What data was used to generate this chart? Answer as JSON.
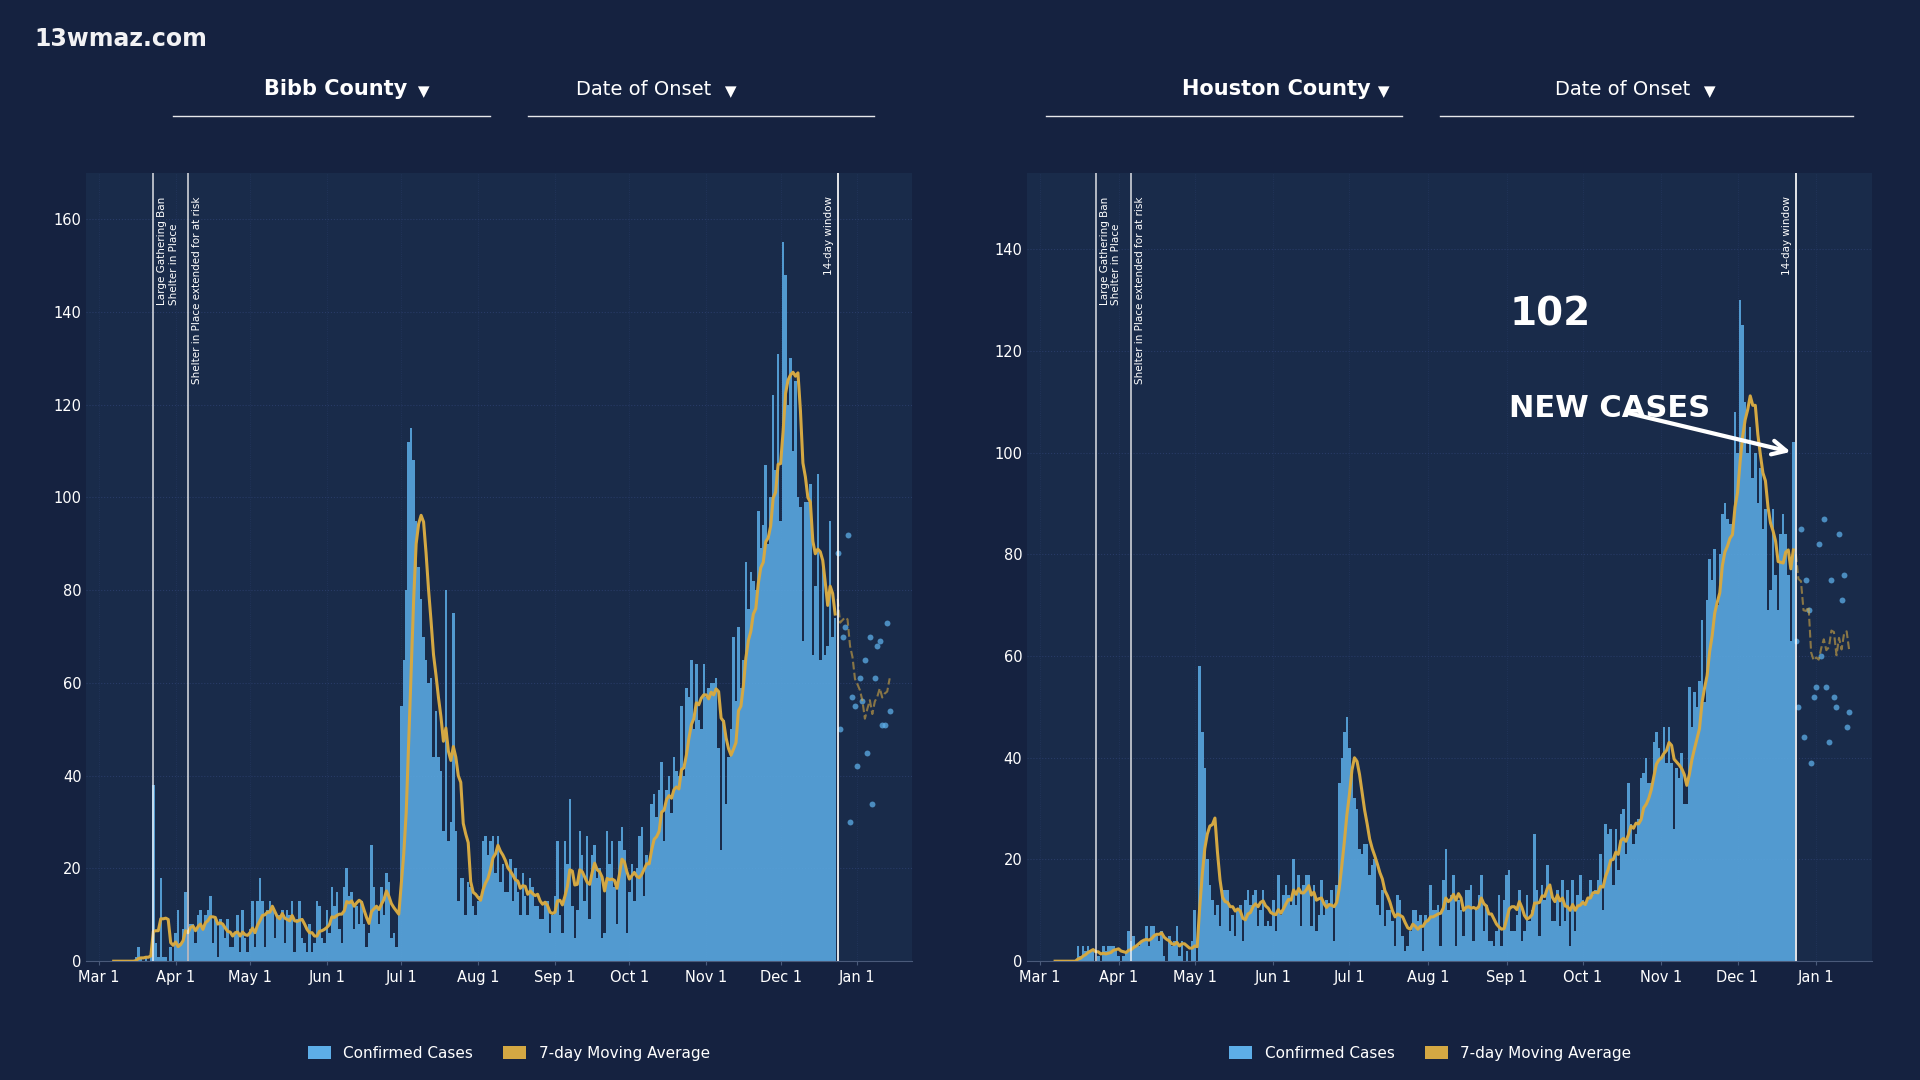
{
  "bg_color": "#152240",
  "plot_bg_color": "#192b4a",
  "grid_color": "#2a3d6a",
  "bar_color": "#5daee8",
  "bar_alpha": 0.85,
  "line_color": "#d4a843",
  "text_color": "#ffffff",
  "watermark": "13wmaz.com",
  "chart1": {
    "title": "Bibb County",
    "subtitle": "Date of Onset",
    "ylim": [
      0,
      170
    ],
    "yticks": [
      0,
      20,
      40,
      60,
      80,
      100,
      120,
      140,
      160
    ],
    "vline1_x": 22,
    "vline2_x": 36,
    "vline3_x": 298,
    "vline1_label": "Large Gathering Ban\nShelter in Place",
    "vline2_label": "Shelter in Place extended for at risk",
    "vline3_label": "14-day window"
  },
  "chart2": {
    "title": "Houston County",
    "subtitle": "Date of Onset",
    "ylim": [
      0,
      155
    ],
    "yticks": [
      0,
      20,
      40,
      60,
      80,
      100,
      120,
      140
    ],
    "vline1_x": 22,
    "vline2_x": 36,
    "vline3_x": 298,
    "vline1_label": "Large Gathering Ban\nShelter in Place",
    "vline2_label": "Shelter in Place extended for at risk",
    "vline3_label": "14-day window"
  },
  "xtick_labels": [
    "Mar 1",
    "Apr 1",
    "May 1",
    "Jun 1",
    "Jul 1",
    "Aug 1",
    "Sep 1",
    "Oct 1",
    "Nov 1",
    "Dec 1",
    "Jan 1"
  ],
  "xtick_positions": [
    0,
    31,
    61,
    92,
    122,
    153,
    184,
    214,
    245,
    275,
    306
  ],
  "n_days": 320,
  "legend_labels": [
    "Confirmed Cases",
    "7-day Moving Average"
  ],
  "legend_colors": [
    "#5daee8",
    "#d4a843"
  ]
}
